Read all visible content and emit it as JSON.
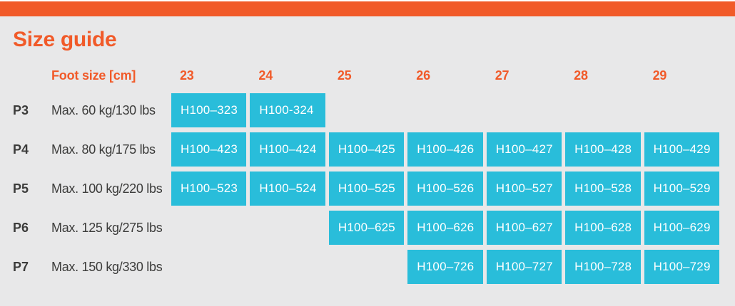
{
  "colors": {
    "accent_orange": "#F15A29",
    "cell_cyan": "#29BDDA",
    "panel_background": "#E8E8E9",
    "label_text": "#3C3C3B",
    "cell_text": "#FFFFFF"
  },
  "chart_data": {
    "type": "table",
    "title": "Size guide",
    "row_header": "Foot size [cm]",
    "categories": [
      "23",
      "24",
      "25",
      "26",
      "27",
      "28",
      "29"
    ],
    "rows": [
      {
        "code": "P3",
        "weight_limit": "Max. 60 kg/130 lbs",
        "start_size": "23",
        "cells": [
          "H100–323",
          "H100-324"
        ]
      },
      {
        "code": "P4",
        "weight_limit": "Max. 80 kg/175 lbs",
        "start_size": "23",
        "cells": [
          "H100–423",
          "H100–424",
          "H100–425",
          "H100–426",
          "H100–427",
          "H100–428",
          "H100–429"
        ]
      },
      {
        "code": "P5",
        "weight_limit": "Max. 100 kg/220 lbs",
        "start_size": "23",
        "cells": [
          "H100–523",
          "H100–524",
          "H100–525",
          "H100–526",
          "H100–527",
          "H100–528",
          "H100–529"
        ]
      },
      {
        "code": "P6",
        "weight_limit": "Max. 125 kg/275 lbs",
        "start_size": "25",
        "cells": [
          "H100–625",
          "H100–626",
          "H100–627",
          "H100–628",
          "H100–629"
        ]
      },
      {
        "code": "P7",
        "weight_limit": "Max. 150 kg/330 lbs",
        "start_size": "26",
        "cells": [
          "H100–726",
          "H100–727",
          "H100–728",
          "H100–729"
        ]
      }
    ]
  }
}
